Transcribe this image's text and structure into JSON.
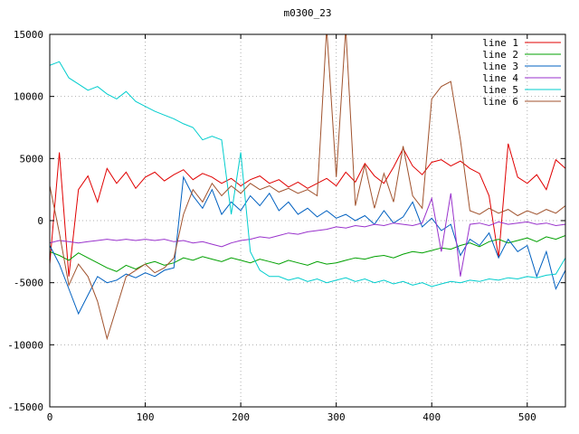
{
  "title": "m0300_23",
  "chart_data": {
    "type": "line",
    "title": "m0300_23",
    "xlabel": "",
    "ylabel": "",
    "xlim": [
      0,
      540
    ],
    "ylim": [
      -15000,
      15000
    ],
    "xticks": [
      0,
      100,
      200,
      300,
      400,
      500
    ],
    "yticks": [
      -15000,
      -10000,
      -5000,
      0,
      5000,
      10000,
      15000
    ],
    "grid": true,
    "grid_color": "#b0b0b0",
    "border_color": "#000000",
    "legend_position": "top-right",
    "x_step": 10,
    "series": [
      {
        "name": "line 1",
        "color": "#e00000",
        "values": [
          -3500,
          5500,
          -4500,
          2500,
          3600,
          1500,
          4200,
          3000,
          3900,
          2600,
          3500,
          3900,
          3200,
          3700,
          4100,
          3300,
          3800,
          3500,
          3000,
          3400,
          2800,
          3300,
          3600,
          3000,
          3300,
          2700,
          3100,
          2600,
          3000,
          3400,
          2800,
          3900,
          3100,
          4600,
          3600,
          3000,
          4300,
          5800,
          4400,
          3700,
          4700,
          4900,
          4400,
          4800,
          4200,
          3800,
          2000,
          -3000,
          6200,
          3500,
          3000,
          3700,
          2500,
          4900,
          4200
        ]
      },
      {
        "name": "line 2",
        "color": "#00a000",
        "values": [
          -2500,
          -2800,
          -3200,
          -2600,
          -3000,
          -3400,
          -3800,
          -4100,
          -3600,
          -3900,
          -3500,
          -3300,
          -3600,
          -3400,
          -3000,
          -3200,
          -2900,
          -3100,
          -3300,
          -3000,
          -3200,
          -3400,
          -3100,
          -3300,
          -3500,
          -3200,
          -3400,
          -3600,
          -3300,
          -3500,
          -3400,
          -3200,
          -3000,
          -3100,
          -2900,
          -2800,
          -3000,
          -2700,
          -2500,
          -2600,
          -2400,
          -2200,
          -2300,
          -2000,
          -1800,
          -2100,
          -1700,
          -1500,
          -1800,
          -1600,
          -1400,
          -1700,
          -1300,
          -1500,
          -1200
        ]
      },
      {
        "name": "line 3",
        "color": "#0060c0",
        "values": [
          -2000,
          -3500,
          -5500,
          -7500,
          -6000,
          -4500,
          -5000,
          -4800,
          -4300,
          -4600,
          -4200,
          -4500,
          -4000,
          -3800,
          3500,
          2000,
          1000,
          2500,
          500,
          1500,
          800,
          2000,
          1200,
          2200,
          800,
          1500,
          500,
          1000,
          300,
          800,
          200,
          500,
          0,
          400,
          -300,
          800,
          -200,
          300,
          1500,
          -500,
          200,
          -800,
          -300,
          -2800,
          -1500,
          -2000,
          -1000,
          -3000,
          -1500,
          -2500,
          -2000,
          -4500,
          -2500,
          -5500,
          -4000
        ]
      },
      {
        "name": "line 4",
        "color": "#9932cc",
        "values": [
          -1800,
          -1600,
          -1700,
          -1800,
          -1700,
          -1600,
          -1500,
          -1600,
          -1500,
          -1600,
          -1500,
          -1600,
          -1500,
          -1700,
          -1600,
          -1800,
          -1700,
          -1900,
          -2100,
          -1800,
          -1600,
          -1500,
          -1300,
          -1400,
          -1200,
          -1000,
          -1100,
          -900,
          -800,
          -700,
          -500,
          -600,
          -400,
          -500,
          -300,
          -400,
          -200,
          -300,
          -400,
          -200,
          1800,
          -2500,
          2200,
          -4500,
          -300,
          -200,
          -400,
          -100,
          -300,
          -200,
          -100,
          -300,
          -200,
          -400,
          -300
        ]
      },
      {
        "name": "line 5",
        "color": "#00cdcd",
        "values": [
          12500,
          12800,
          11500,
          11000,
          10500,
          10800,
          10200,
          9800,
          10400,
          9600,
          9200,
          8800,
          8500,
          8200,
          7800,
          7500,
          6500,
          6800,
          6500,
          500,
          5500,
          -2500,
          -4000,
          -4500,
          -4500,
          -4800,
          -4600,
          -4900,
          -4700,
          -5000,
          -4800,
          -4600,
          -4900,
          -4700,
          -5000,
          -4800,
          -5100,
          -4900,
          -5200,
          -5000,
          -5300,
          -5100,
          -4900,
          -5000,
          -4800,
          -4900,
          -4700,
          -4800,
          -4600,
          -4700,
          -4500,
          -4600,
          -4400,
          -4300,
          -3000
        ]
      },
      {
        "name": "line 6",
        "color": "#a0522d",
        "values": [
          2800,
          -1000,
          -5200,
          -3500,
          -4500,
          -6500,
          -9500,
          -7000,
          -4500,
          -4000,
          -3500,
          -4200,
          -3800,
          -3000,
          500,
          2500,
          1500,
          3000,
          2000,
          2800,
          2200,
          3000,
          2500,
          2800,
          2300,
          2600,
          2200,
          2500,
          2000,
          15500,
          3500,
          15500,
          1200,
          4500,
          1000,
          3800,
          1500,
          6000,
          2000,
          1000,
          9800,
          10800,
          11200,
          6500,
          800,
          500,
          1000,
          600,
          900,
          400,
          800,
          500,
          900,
          600,
          1200
        ]
      }
    ]
  }
}
